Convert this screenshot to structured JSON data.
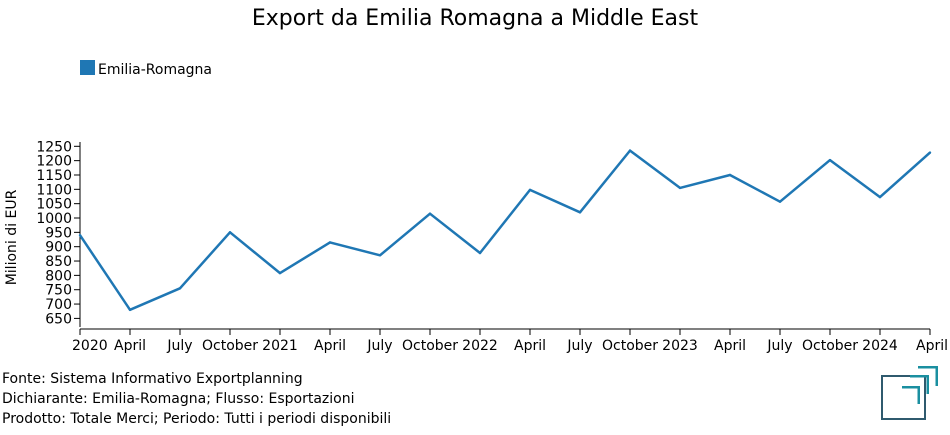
{
  "chart_data": {
    "type": "line",
    "title": "Export da Emilia Romagna a Middle East",
    "ylabel": "Milioni di EUR",
    "xlabel": "",
    "legend": {
      "position": "top-left",
      "entries": [
        "Emilia-Romagna"
      ]
    },
    "grid": false,
    "ylim": [
      620,
      1265
    ],
    "yticks": [
      650,
      700,
      750,
      800,
      850,
      900,
      950,
      1000,
      1050,
      1100,
      1150,
      1200,
      1250
    ],
    "xticks": [
      "2020",
      "April",
      "July",
      "October",
      "2021",
      "April",
      "July",
      "October",
      "2022",
      "April",
      "July",
      "October",
      "2023",
      "April",
      "July",
      "October",
      "2024",
      "April"
    ],
    "x": [
      "2020-01",
      "2020-04",
      "2020-07",
      "2020-10",
      "2021-01",
      "2021-04",
      "2021-07",
      "2021-10",
      "2022-01",
      "2022-04",
      "2022-07",
      "2022-10",
      "2023-01",
      "2023-04",
      "2023-07",
      "2023-10",
      "2024-01",
      "2024-04"
    ],
    "series": [
      {
        "name": "Emilia-Romagna",
        "color": "#1f77b4",
        "values": [
          940,
          680,
          755,
          950,
          808,
          915,
          870,
          1015,
          878,
          1098,
          1020,
          1235,
          1105,
          1150,
          1057,
          1202,
          1073,
          1228
        ]
      }
    ]
  },
  "footer": {
    "source": "Fonte: Sistema Informativo Exportplanning",
    "declarant": "Dichiarante: Emilia-Romagna; Flusso: Esportazioni",
    "product": "Prodotto: Totale Merci; Periodo: Tutti i periodi disponibili"
  },
  "logo": {
    "icon": "exportplanning-logo-icon",
    "colors": [
      "#1a8fa0",
      "#2f5a6e"
    ]
  }
}
